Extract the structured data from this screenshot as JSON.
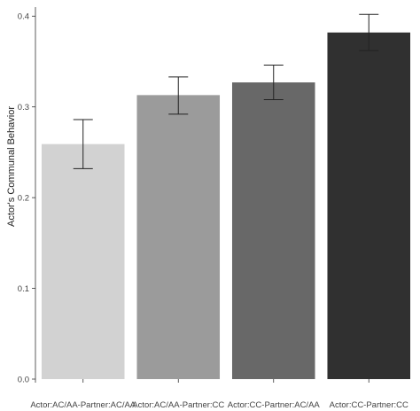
{
  "chart_data": {
    "type": "bar",
    "title": "",
    "xlabel": "",
    "ylabel": "Actor's Communal Behavior",
    "categories": [
      "Actor:AC/AA-Partner:AC/AA",
      "Actor:AC/AA-Partner:CC",
      "Actor:CC-Partner:AC/AA",
      "Actor:CC-Partner:CC"
    ],
    "values": [
      0.259,
      0.313,
      0.327,
      0.382
    ],
    "error_low": [
      0.232,
      0.292,
      0.308,
      0.362
    ],
    "error_high": [
      0.286,
      0.333,
      0.346,
      0.402
    ],
    "bar_colors": [
      "#d2d2d2",
      "#9b9b9b",
      "#686868",
      "#303030"
    ],
    "ylim": [
      0,
      0.41
    ],
    "yticks": [
      0.0,
      0.1,
      0.2,
      0.3,
      0.4
    ],
    "ytick_labels": [
      "0.0",
      "0.1",
      "0.2",
      "0.3",
      "0.4"
    ],
    "grid": false,
    "legend": "none"
  }
}
